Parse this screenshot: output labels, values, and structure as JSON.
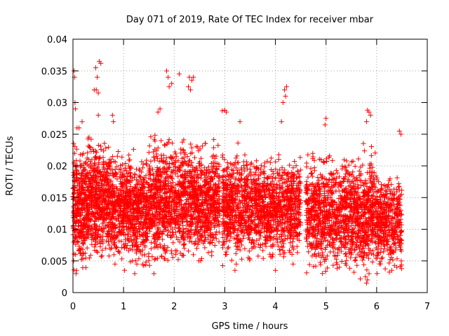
{
  "chart_data": {
    "type": "scatter",
    "title": "Day 071 of 2019, Rate Of TEC Index for receiver mbar",
    "xlabel": "GPS time / hours",
    "ylabel": "ROTI / TECUs",
    "xlim": [
      0,
      7
    ],
    "ylim": [
      0,
      0.04
    ],
    "x_ticks": [
      "0",
      "1",
      "2",
      "3",
      "4",
      "5",
      "6",
      "7"
    ],
    "y_ticks": [
      "0",
      "0.005",
      "0.01",
      "0.015",
      "0.02",
      "0.025",
      "0.03",
      "0.035",
      "0.04"
    ],
    "grid": true,
    "marker": "+",
    "color": "#ff0000",
    "series": [
      {
        "name": "ROTI",
        "clusters": [
          {
            "x_range": [
              0.0,
              0.3
            ],
            "y_range": [
              0.003,
              0.027
            ],
            "n": 380
          },
          {
            "x_range": [
              0.3,
              0.75
            ],
            "y_range": [
              0.005,
              0.028
            ],
            "n": 520
          },
          {
            "x_range": [
              0.75,
              1.5
            ],
            "y_range": [
              0.004,
              0.025
            ],
            "n": 780
          },
          {
            "x_range": [
              1.5,
              2.2
            ],
            "y_range": [
              0.004,
              0.028
            ],
            "n": 720
          },
          {
            "x_range": [
              2.2,
              2.9
            ],
            "y_range": [
              0.005,
              0.027
            ],
            "n": 700
          },
          {
            "x_range": [
              2.95,
              3.5
            ],
            "y_range": [
              0.004,
              0.026
            ],
            "n": 520
          },
          {
            "x_range": [
              3.5,
              4.5
            ],
            "y_range": [
              0.005,
              0.025
            ],
            "n": 900
          },
          {
            "x_range": [
              4.6,
              5.4
            ],
            "y_range": [
              0.003,
              0.025
            ],
            "n": 720
          },
          {
            "x_range": [
              5.4,
              6.0
            ],
            "y_range": [
              0.002,
              0.026
            ],
            "n": 580
          },
          {
            "x_range": [
              6.0,
              6.5
            ],
            "y_range": [
              0.003,
              0.022
            ],
            "n": 420
          }
        ],
        "outliers": [
          {
            "x": 0.02,
            "y": 0.035
          },
          {
            "x": 0.03,
            "y": 0.034
          },
          {
            "x": 0.04,
            "y": 0.03
          },
          {
            "x": 0.05,
            "y": 0.029
          },
          {
            "x": 0.08,
            "y": 0.026
          },
          {
            "x": 0.12,
            "y": 0.026
          },
          {
            "x": 0.18,
            "y": 0.027
          },
          {
            "x": 0.45,
            "y": 0.0355
          },
          {
            "x": 0.48,
            "y": 0.034
          },
          {
            "x": 0.52,
            "y": 0.0365
          },
          {
            "x": 0.55,
            "y": 0.0362
          },
          {
            "x": 0.42,
            "y": 0.032
          },
          {
            "x": 0.46,
            "y": 0.032
          },
          {
            "x": 0.5,
            "y": 0.0315
          },
          {
            "x": 0.5,
            "y": 0.028
          },
          {
            "x": 0.78,
            "y": 0.028
          },
          {
            "x": 0.8,
            "y": 0.027
          },
          {
            "x": 1.85,
            "y": 0.035
          },
          {
            "x": 1.88,
            "y": 0.034
          },
          {
            "x": 1.9,
            "y": 0.0325
          },
          {
            "x": 1.95,
            "y": 0.033
          },
          {
            "x": 2.1,
            "y": 0.0345
          },
          {
            "x": 1.72,
            "y": 0.029
          },
          {
            "x": 1.68,
            "y": 0.0285
          },
          {
            "x": 2.3,
            "y": 0.034
          },
          {
            "x": 2.35,
            "y": 0.0335
          },
          {
            "x": 2.32,
            "y": 0.032
          },
          {
            "x": 2.38,
            "y": 0.034
          },
          {
            "x": 2.28,
            "y": 0.0325
          },
          {
            "x": 2.95,
            "y": 0.0287
          },
          {
            "x": 3.0,
            "y": 0.0288
          },
          {
            "x": 3.03,
            "y": 0.0285
          },
          {
            "x": 3.3,
            "y": 0.027
          },
          {
            "x": 4.18,
            "y": 0.032
          },
          {
            "x": 4.22,
            "y": 0.0325
          },
          {
            "x": 4.15,
            "y": 0.03
          },
          {
            "x": 4.12,
            "y": 0.027
          },
          {
            "x": 4.2,
            "y": 0.031
          },
          {
            "x": 5.0,
            "y": 0.0275
          },
          {
            "x": 4.98,
            "y": 0.0265
          },
          {
            "x": 5.82,
            "y": 0.0288
          },
          {
            "x": 5.85,
            "y": 0.0285
          },
          {
            "x": 5.88,
            "y": 0.028
          },
          {
            "x": 5.8,
            "y": 0.027
          },
          {
            "x": 6.45,
            "y": 0.0255
          },
          {
            "x": 6.48,
            "y": 0.025
          },
          {
            "x": 5.8,
            "y": 0.0015
          },
          {
            "x": 5.82,
            "y": 0.002
          },
          {
            "x": 5.78,
            "y": 0.0025
          },
          {
            "x": 5.85,
            "y": 0.003
          },
          {
            "x": 0.06,
            "y": 0.003
          },
          {
            "x": 0.07,
            "y": 0.0035
          },
          {
            "x": 1.22,
            "y": 0.003
          },
          {
            "x": 1.6,
            "y": 0.003
          },
          {
            "x": 1.02,
            "y": 0.0035
          },
          {
            "x": 3.2,
            "y": 0.0035
          },
          {
            "x": 4.0,
            "y": 0.0035
          },
          {
            "x": 4.35,
            "y": 0.0045
          },
          {
            "x": 6.3,
            "y": 0.0035
          },
          {
            "x": 6.4,
            "y": 0.004
          }
        ]
      }
    ]
  }
}
